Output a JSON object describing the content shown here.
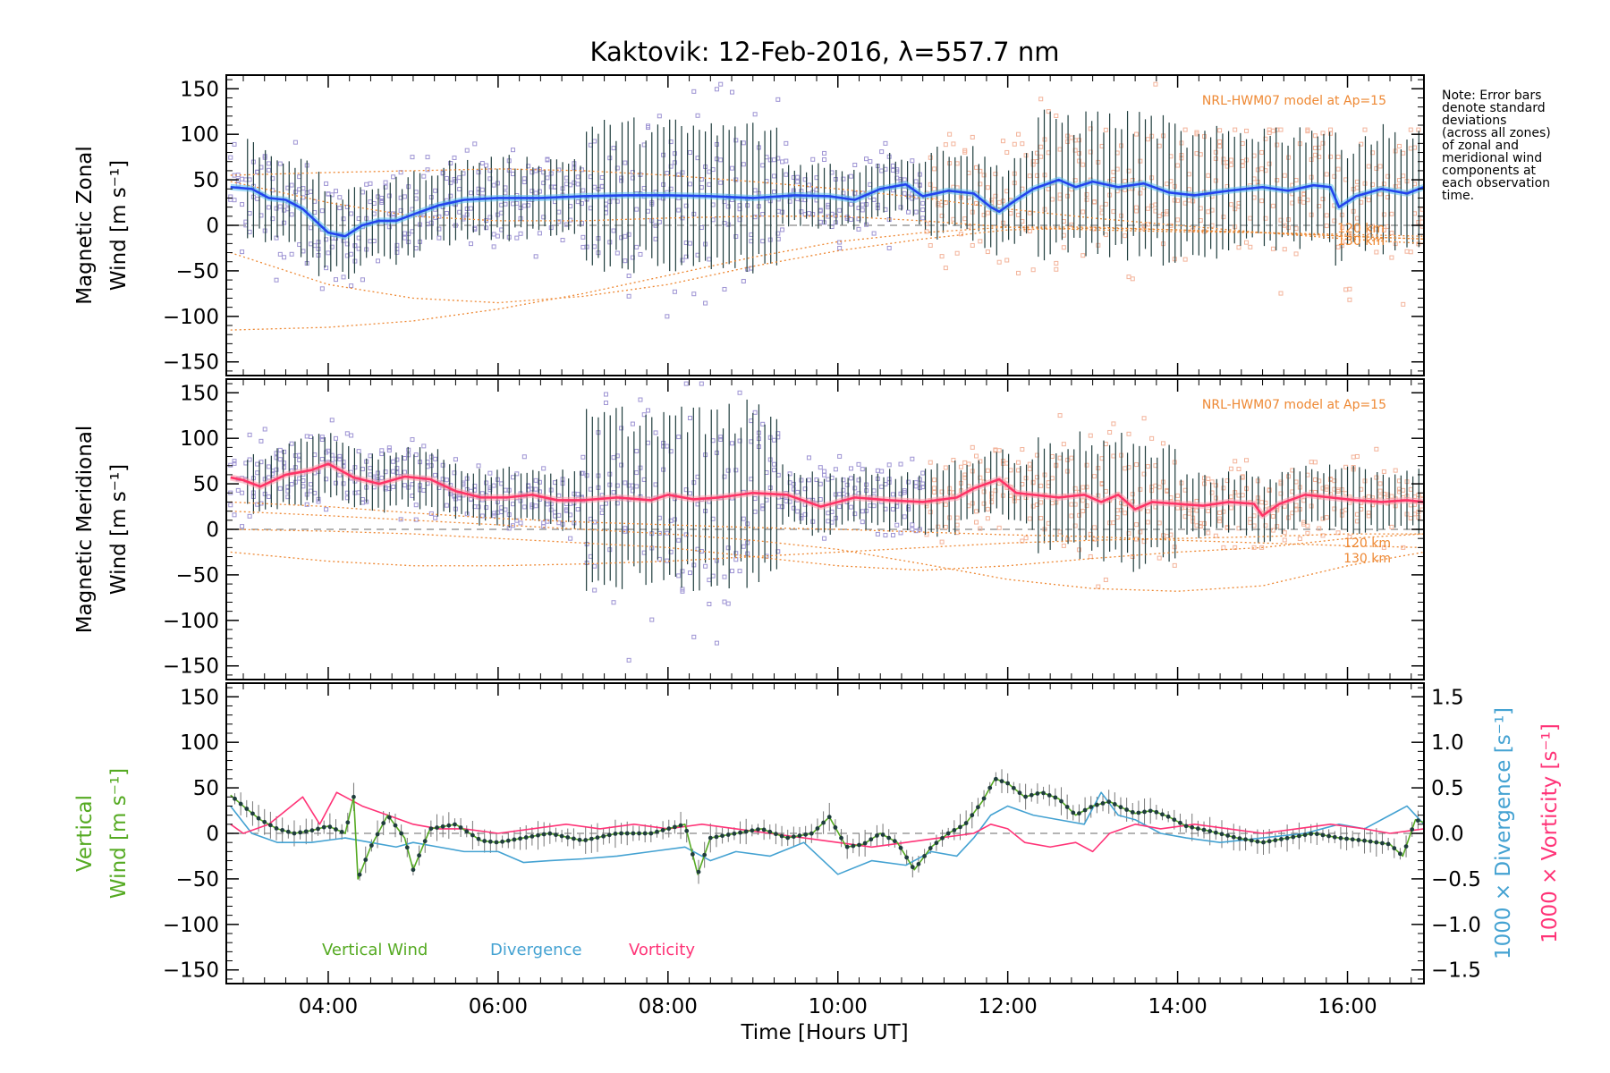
{
  "title": "Kaktovik: 12-Feb-2016, λ=557.7 nm",
  "note_lines": [
    "Note: Error bars",
    "denote standard",
    "deviations",
    "(across all zones)",
    "of zonal and",
    "meridional wind",
    "components at",
    "each observation",
    "time."
  ],
  "colors": {
    "zonal_mean": "#2244ee",
    "zonal_light": "#55bbee",
    "meridional_mean": "#ff3366",
    "meridional_light": "#ff99aa",
    "scatter_lavender": "#9d93d3",
    "scatter_peach": "#f3b39a",
    "errorbar": "#1f3d3d",
    "model": "#ee8833",
    "vertical": "#55aa22",
    "divergence": "#44a2d2",
    "vorticity": "#ff3377"
  },
  "chart_data": [
    {
      "type": "scatter",
      "ylabel_line1": "Magnetic Zonal",
      "ylabel_line2": "Wind [m s⁻¹]",
      "annotation": "NRL-HWM07 model at Ap=15",
      "model_labels": [
        "120 km",
        "130 km"
      ],
      "xlim": [
        2.8,
        16.9
      ],
      "ylim": [
        -165,
        165
      ],
      "yticks": [
        "150",
        "100",
        "50",
        "0",
        "−50",
        "−100",
        "−150"
      ],
      "ytick_values": [
        150,
        100,
        50,
        0,
        -50,
        -100,
        -150
      ],
      "mean_series": {
        "name": "Zonal wind",
        "x": [
          2.85,
          3.1,
          3.3,
          3.5,
          3.7,
          3.85,
          4.0,
          4.2,
          4.4,
          4.6,
          4.8,
          5.0,
          5.3,
          5.6,
          6.0,
          6.5,
          7.0,
          7.5,
          8.0,
          8.5,
          9.0,
          9.5,
          9.9,
          10.2,
          10.5,
          10.8,
          11.0,
          11.3,
          11.6,
          11.8,
          11.9,
          12.1,
          12.3,
          12.6,
          12.8,
          13.0,
          13.3,
          13.6,
          13.9,
          14.2,
          14.6,
          15.0,
          15.3,
          15.6,
          15.8,
          15.9,
          16.1,
          16.4,
          16.7,
          16.9
        ],
        "values": [
          42,
          40,
          30,
          28,
          18,
          5,
          -8,
          -12,
          0,
          5,
          5,
          12,
          22,
          28,
          30,
          30,
          32,
          33,
          33,
          32,
          30,
          33,
          32,
          28,
          40,
          45,
          32,
          38,
          35,
          20,
          15,
          28,
          40,
          50,
          42,
          48,
          42,
          46,
          36,
          33,
          38,
          42,
          38,
          44,
          42,
          20,
          32,
          40,
          35,
          42
        ]
      },
      "scatter_spread": [
        {
          "x": [
            2.85,
            4.0
          ],
          "low": -70,
          "high": 100
        },
        {
          "x": [
            4.0,
            5.5
          ],
          "low": -70,
          "high": 75
        },
        {
          "x": [
            5.5,
            7.0
          ],
          "low": -40,
          "high": 100
        },
        {
          "x": [
            7.0,
            9.3
          ],
          "low": -100,
          "high": 155
        },
        {
          "x": [
            9.3,
            11.0
          ],
          "low": -25,
          "high": 90
        },
        {
          "x": [
            11.0,
            12.3
          ],
          "low": -60,
          "high": 100
        },
        {
          "x": [
            12.3,
            14.0
          ],
          "low": -90,
          "high": 155
        },
        {
          "x": [
            14.0,
            16.9
          ],
          "low": -110,
          "high": 105
        }
      ],
      "model_curves": [
        {
          "x": [
            2.85,
            4,
            5,
            6,
            7,
            8,
            9,
            10,
            11,
            12,
            13,
            14,
            15,
            16,
            16.9
          ],
          "values": [
            55,
            58,
            60,
            62,
            60,
            55,
            48,
            40,
            30,
            18,
            8,
            0,
            -8,
            -12,
            -15
          ]
        },
        {
          "x": [
            2.85,
            4,
            5,
            6,
            7,
            8,
            9,
            10,
            11,
            12,
            13,
            14,
            15,
            16,
            16.9
          ],
          "values": [
            48,
            25,
            10,
            5,
            5,
            8,
            10,
            10,
            5,
            -2,
            -5,
            -7,
            -8,
            -10,
            -12
          ]
        },
        {
          "x": [
            2.85,
            4,
            5,
            6,
            7,
            8,
            9,
            10,
            11,
            12,
            13,
            14,
            15,
            16,
            16.9
          ],
          "values": [
            -30,
            -65,
            -80,
            -85,
            -78,
            -65,
            -45,
            -28,
            -15,
            -5,
            -3,
            -5,
            -8,
            -15,
            -20
          ]
        },
        {
          "x": [
            2.85,
            4,
            5,
            6,
            7,
            8,
            9,
            10,
            11,
            12,
            13,
            14,
            15,
            16,
            16.9
          ],
          "values": [
            -115,
            -112,
            -105,
            -92,
            -75,
            -55,
            -35,
            -18,
            -8,
            -2,
            -2,
            -5,
            -8,
            -12,
            -15
          ]
        }
      ]
    },
    {
      "type": "scatter",
      "ylabel_line1": "Magnetic Meridional",
      "ylabel_line2": "Wind [m s⁻¹]",
      "annotation": "NRL-HWM07 model at Ap=15",
      "model_labels": [
        "120 km",
        "130 km"
      ],
      "xlim": [
        2.8,
        16.9
      ],
      "ylim": [
        -165,
        165
      ],
      "yticks": [
        "150",
        "100",
        "50",
        "0",
        "−50",
        "−100",
        "−150"
      ],
      "ytick_values": [
        150,
        100,
        50,
        0,
        -50,
        -100,
        -150
      ],
      "mean_series": {
        "name": "Meridional wind",
        "x": [
          2.85,
          3.0,
          3.2,
          3.5,
          3.8,
          4.0,
          4.3,
          4.6,
          4.9,
          5.2,
          5.5,
          5.8,
          6.1,
          6.4,
          6.7,
          7.0,
          7.4,
          7.8,
          8.0,
          8.3,
          8.6,
          9.0,
          9.4,
          9.8,
          10.2,
          10.6,
          11.0,
          11.4,
          11.6,
          11.9,
          12.1,
          12.3,
          12.6,
          12.9,
          13.1,
          13.3,
          13.5,
          13.7,
          14.0,
          14.3,
          14.6,
          14.9,
          15.0,
          15.2,
          15.5,
          15.8,
          16.1,
          16.4,
          16.7,
          16.9
        ],
        "values": [
          57,
          54,
          47,
          60,
          65,
          72,
          57,
          50,
          58,
          55,
          42,
          35,
          35,
          38,
          32,
          32,
          35,
          32,
          38,
          33,
          35,
          40,
          38,
          25,
          35,
          32,
          30,
          35,
          45,
          55,
          40,
          38,
          35,
          38,
          30,
          38,
          22,
          30,
          28,
          26,
          30,
          28,
          15,
          28,
          38,
          35,
          32,
          30,
          32,
          30
        ]
      },
      "scatter_spread": [
        {
          "x": [
            2.85,
            4.0
          ],
          "low": 0,
          "high": 110
        },
        {
          "x": [
            4.0,
            5.5
          ],
          "low": 10,
          "high": 120
        },
        {
          "x": [
            5.5,
            7.0
          ],
          "low": -10,
          "high": 90
        },
        {
          "x": [
            7.0,
            9.3
          ],
          "low": -145,
          "high": 160
        },
        {
          "x": [
            9.3,
            11.0
          ],
          "low": -10,
          "high": 95
        },
        {
          "x": [
            11.0,
            12.3
          ],
          "low": -30,
          "high": 90
        },
        {
          "x": [
            12.3,
            14.0
          ],
          "low": -80,
          "high": 130
        },
        {
          "x": [
            14.0,
            16.9
          ],
          "low": -20,
          "high": 90
        }
      ],
      "model_curves": [
        {
          "x": [
            2.85,
            4,
            5,
            6,
            7,
            8,
            9,
            10,
            11,
            12,
            13,
            14,
            15,
            16,
            16.9
          ],
          "values": [
            30,
            25,
            18,
            12,
            8,
            5,
            2,
            0,
            -3,
            -6,
            -8,
            -12,
            -15,
            -18,
            -20
          ]
        },
        {
          "x": [
            2.85,
            4,
            5,
            6,
            7,
            8,
            9,
            10,
            11,
            12,
            13,
            14,
            15,
            16,
            16.9
          ],
          "values": [
            20,
            15,
            10,
            5,
            0,
            -5,
            -12,
            -22,
            -38,
            -55,
            -65,
            -68,
            -62,
            -40,
            -25
          ]
        },
        {
          "x": [
            2.85,
            4,
            5,
            6,
            7,
            8,
            9,
            10,
            11,
            12,
            13,
            14,
            15,
            16,
            16.9
          ],
          "values": [
            -25,
            -35,
            -40,
            -40,
            -38,
            -35,
            -30,
            -25,
            -20,
            -15,
            -12,
            -10,
            -8,
            -5,
            -5
          ]
        },
        {
          "x": [
            2.85,
            4,
            5,
            6,
            7,
            8,
            9,
            10,
            11,
            12,
            13,
            14,
            15,
            16,
            16.9
          ],
          "values": [
            0,
            -2,
            -5,
            -10,
            -15,
            -20,
            -30,
            -40,
            -45,
            -40,
            -32,
            -25,
            -20,
            -10,
            -5
          ]
        }
      ]
    },
    {
      "type": "line",
      "ylabel_line1": "Vertical",
      "ylabel_line2": "Wind [m s⁻¹]",
      "right_label_divergence": "1000 × Divergence [s⁻¹]",
      "right_label_vorticity": "1000 × Vorticity [s⁻¹]",
      "xlabel": "Time [Hours UT]",
      "xlim": [
        2.8,
        16.9
      ],
      "ylim": [
        -165,
        165
      ],
      "yticks": [
        "150",
        "100",
        "50",
        "0",
        "−50",
        "−100",
        "−150"
      ],
      "ytick_values": [
        150,
        100,
        50,
        0,
        -50,
        -100,
        -150
      ],
      "y2lim": [
        -1.65,
        1.65
      ],
      "y2ticks": [
        "1.5",
        "1.0",
        "0.5",
        "0.0",
        "−0.5",
        "−1.0",
        "−1.5"
      ],
      "y2tick_values": [
        1.5,
        1.0,
        0.5,
        0.0,
        -0.5,
        -1.0,
        -1.5
      ],
      "xticks": [
        "04:00",
        "06:00",
        "08:00",
        "10:00",
        "12:00",
        "14:00",
        "16:00"
      ],
      "xtick_values": [
        4,
        6,
        8,
        10,
        12,
        14,
        16
      ],
      "legend": [
        "Vertical Wind",
        "Divergence",
        "Vorticity"
      ],
      "series": [
        {
          "name": "Vertical Wind",
          "x": [
            2.85,
            3.0,
            3.2,
            3.4,
            3.6,
            3.8,
            4.0,
            4.2,
            4.3,
            4.35,
            4.5,
            4.7,
            4.9,
            5.0,
            5.2,
            5.5,
            5.8,
            6.0,
            6.3,
            6.6,
            7.0,
            7.4,
            7.8,
            8.0,
            8.2,
            8.35,
            8.5,
            8.8,
            9.1,
            9.4,
            9.7,
            9.9,
            10.1,
            10.3,
            10.5,
            10.7,
            10.9,
            11.1,
            11.3,
            11.5,
            11.7,
            11.85,
            12.0,
            12.2,
            12.4,
            12.6,
            12.8,
            13.0,
            13.2,
            13.3,
            13.5,
            13.7,
            13.9,
            14.1,
            14.4,
            14.7,
            15.0,
            15.3,
            15.6,
            15.9,
            16.2,
            16.5,
            16.65,
            16.8,
            16.9
          ],
          "values": [
            42,
            30,
            15,
            5,
            0,
            3,
            8,
            0,
            40,
            -50,
            -15,
            20,
            -5,
            -40,
            5,
            10,
            -8,
            -10,
            -5,
            0,
            -8,
            0,
            0,
            5,
            10,
            -45,
            -5,
            0,
            5,
            -5,
            0,
            18,
            -15,
            -12,
            0,
            -10,
            -40,
            -15,
            0,
            10,
            35,
            60,
            55,
            40,
            45,
            38,
            20,
            30,
            35,
            30,
            22,
            25,
            18,
            8,
            2,
            -5,
            -10,
            -5,
            0,
            -5,
            -8,
            -12,
            -25,
            15,
            12
          ]
        },
        {
          "name": "Divergence",
          "x": [
            2.85,
            3.1,
            3.4,
            3.8,
            4.2,
            4.5,
            4.8,
            5.0,
            5.3,
            5.6,
            6.0,
            6.3,
            6.6,
            7.0,
            7.4,
            7.8,
            8.2,
            8.5,
            8.8,
            9.2,
            9.6,
            10.0,
            10.4,
            10.8,
            11.1,
            11.4,
            11.6,
            11.8,
            12.0,
            12.3,
            12.6,
            12.9,
            13.1,
            13.3,
            13.5,
            13.8,
            14.1,
            14.5,
            15.0,
            15.5,
            15.9,
            16.2,
            16.5,
            16.7,
            16.9
          ],
          "values": [
            0.3,
            0.0,
            -0.1,
            -0.1,
            -0.05,
            -0.1,
            -0.15,
            -0.1,
            -0.15,
            -0.2,
            -0.2,
            -0.32,
            -0.3,
            -0.28,
            -0.25,
            -0.2,
            -0.15,
            -0.3,
            -0.2,
            -0.25,
            -0.1,
            -0.45,
            -0.3,
            -0.35,
            -0.2,
            -0.25,
            -0.05,
            0.2,
            0.3,
            0.2,
            0.15,
            0.1,
            0.45,
            0.2,
            0.15,
            0.0,
            -0.05,
            -0.1,
            -0.05,
            0.0,
            0.1,
            0.05,
            0.2,
            0.3,
            0.1
          ]
        },
        {
          "name": "Vorticity",
          "x": [
            2.85,
            3.0,
            3.3,
            3.7,
            3.9,
            4.1,
            4.4,
            4.7,
            5.0,
            5.3,
            5.6,
            6.0,
            6.4,
            6.8,
            7.2,
            7.6,
            8.0,
            8.4,
            8.8,
            9.2,
            9.6,
            10.0,
            10.4,
            10.8,
            11.2,
            11.6,
            11.8,
            12.0,
            12.2,
            12.5,
            12.8,
            13.0,
            13.2,
            13.5,
            13.8,
            14.2,
            14.6,
            15.0,
            15.4,
            15.8,
            16.2,
            16.5,
            16.9
          ],
          "values": [
            0.1,
            0.0,
            0.1,
            0.4,
            0.1,
            0.45,
            0.3,
            0.2,
            0.1,
            0.05,
            0.05,
            0.0,
            0.05,
            0.1,
            0.05,
            0.1,
            0.05,
            0.1,
            0.05,
            0.0,
            -0.05,
            -0.1,
            -0.15,
            -0.1,
            -0.05,
            0.0,
            0.1,
            0.05,
            -0.1,
            -0.15,
            -0.1,
            -0.2,
            0.0,
            0.1,
            0.05,
            0.1,
            0.05,
            0.0,
            0.05,
            0.1,
            0.05,
            0.0,
            0.05
          ]
        }
      ]
    }
  ]
}
